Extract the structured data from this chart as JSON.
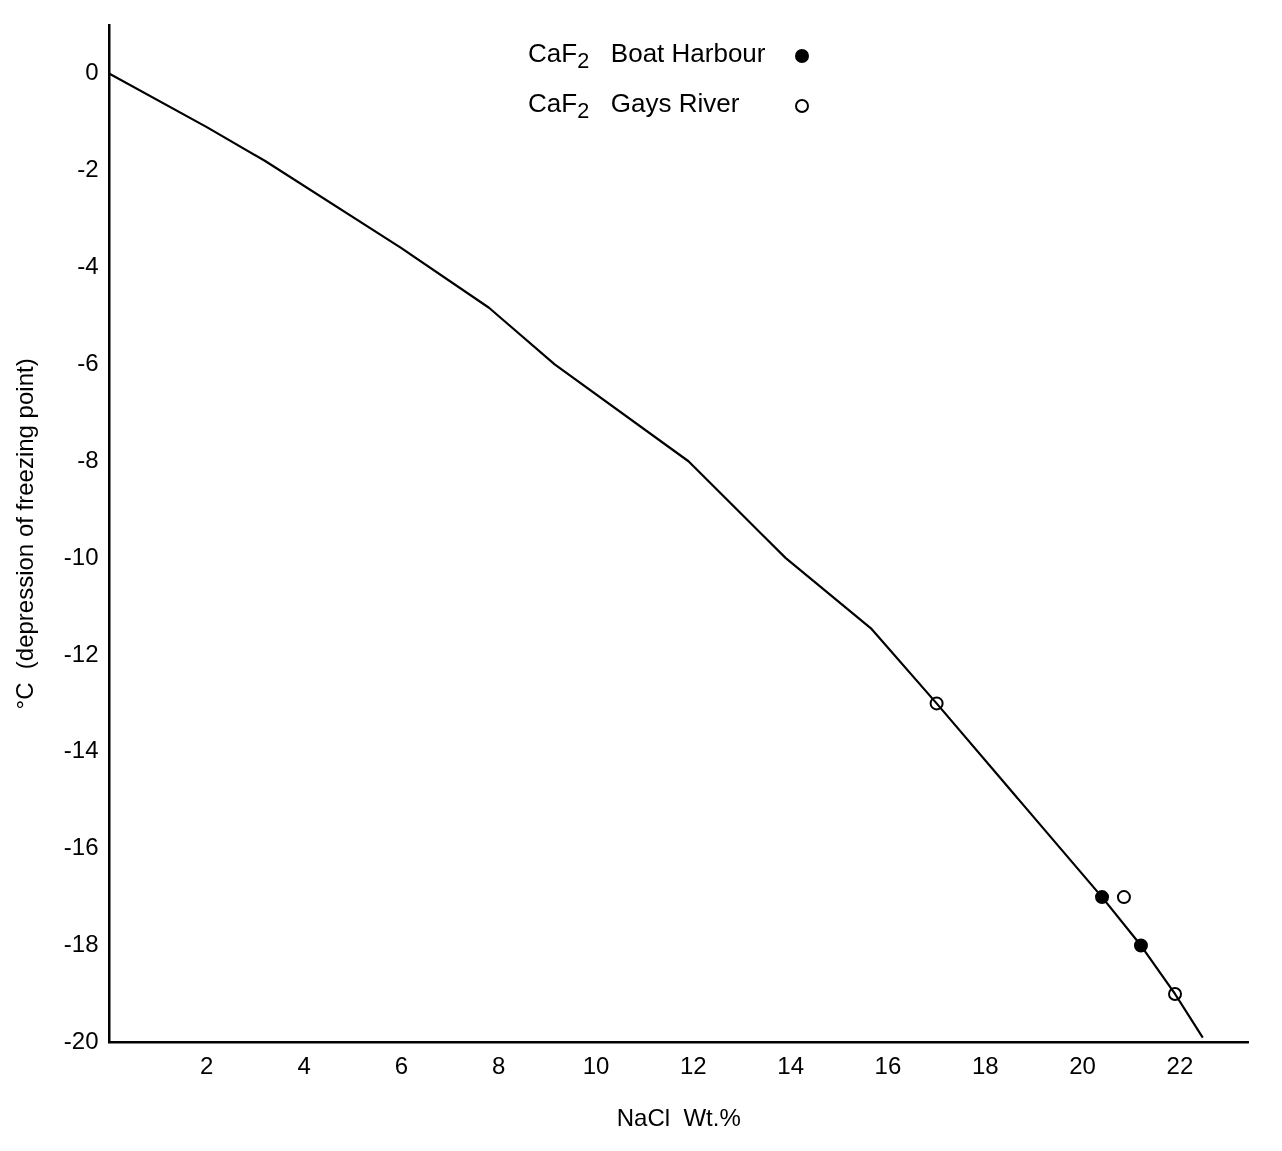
{
  "chart_data": {
    "type": "line",
    "xlabel": "NaCl  Wt.%",
    "ylabel": "°C  (depression of freezing point)",
    "xlim": [
      0,
      23.4
    ],
    "ylim": [
      -20,
      1
    ],
    "xticks": [
      2,
      4,
      6,
      8,
      10,
      12,
      14,
      16,
      18,
      20,
      22
    ],
    "yticks": [
      0,
      -2,
      -4,
      -6,
      -8,
      -10,
      -12,
      -14,
      -16,
      -18,
      -20
    ],
    "grid": false,
    "legend": "top",
    "series": [
      {
        "color": "#000000",
        "marker": "none",
        "x": [
          0,
          2,
          3.2,
          6,
          7.8,
          9.15,
          11.9,
          13.9,
          15.65,
          17,
          20.4,
          21.2,
          21.9,
          22.47
        ],
        "values": [
          0,
          -1.1,
          -1.8,
          -3.6,
          -4.83,
          -6,
          -8,
          -10,
          -11.45,
          -13,
          -17,
          -18,
          -19,
          -19.9
        ]
      },
      {
        "type": "scatter",
        "name": "CaF$_{2}$  Boat Harbour",
        "color": "#000000",
        "marker": "circle",
        "x": [
          20.4,
          21.2
        ],
        "values": [
          -17,
          -18
        ]
      },
      {
        "type": "scatter",
        "name": "CaF$_{2}$  Gays River",
        "color": "#ffffff",
        "marker": "circle",
        "x": [
          17,
          20.85,
          21.9
        ],
        "values": [
          -13,
          -17,
          -19
        ]
      }
    ]
  }
}
